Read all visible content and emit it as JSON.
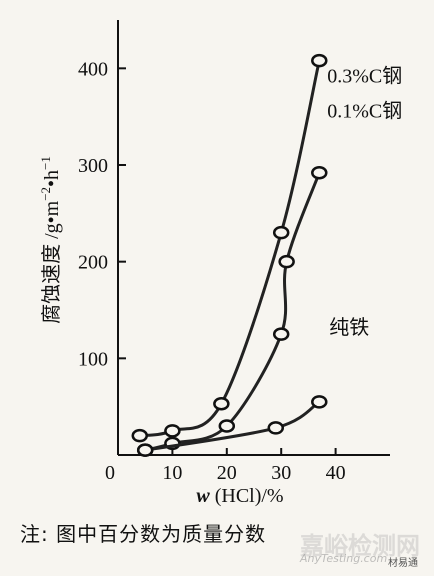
{
  "chart_data": {
    "type": "line",
    "xlabel": "w (HCl)/%",
    "ylabel": "腐蚀速度 /g•m⁻²•h⁻¹",
    "xlim": [
      0,
      50
    ],
    "ylim": [
      0,
      450
    ],
    "x_ticks": [
      0,
      10,
      20,
      30,
      40
    ],
    "y_ticks": [
      100,
      200,
      300,
      400
    ],
    "grid": false,
    "series": [
      {
        "name": "0.3%C钢",
        "points": [
          [
            4,
            20
          ],
          [
            10,
            25
          ],
          [
            19,
            53
          ],
          [
            30,
            230
          ],
          [
            37,
            408
          ]
        ]
      },
      {
        "name": "0.1%C钢",
        "points": [
          [
            5,
            5
          ],
          [
            10,
            12
          ],
          [
            20,
            30
          ],
          [
            30,
            125
          ],
          [
            31,
            200
          ],
          [
            37,
            292
          ]
        ]
      },
      {
        "name": "纯铁",
        "points": [
          [
            5,
            5
          ],
          [
            29,
            28
          ],
          [
            37,
            55
          ]
        ]
      }
    ]
  },
  "note": "注: 图中百分数为质量分数",
  "watermark": {
    "main": "嘉峪检测网",
    "sub": "AnyTesting.com",
    "brand": "材易通"
  }
}
